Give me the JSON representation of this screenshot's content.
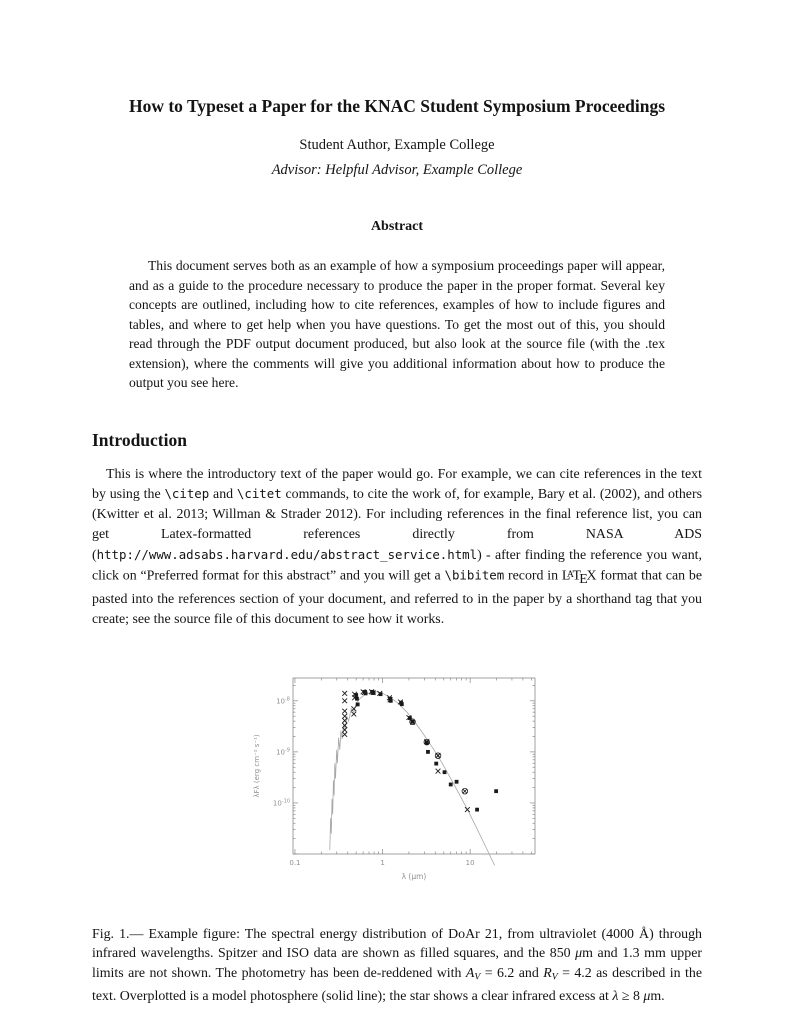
{
  "title": "How to Typeset a Paper for the KNAC Student Symposium Proceedings",
  "author": "Student Author, Example College",
  "advisor": "Advisor: Helpful Advisor, Example College",
  "abstract": {
    "heading": "Abstract",
    "text": "This document serves both as an example of how a symposium proceedings paper will appear, and as a guide to the procedure necessary to produce the paper in the proper format. Several key concepts are outlined, including how to cite references, examples of how to include figures and tables, and where to get help when you have questions. To get the most out of this, you should read through the PDF output document produced, but also look at the source file (with the .tex extension), where the comments will give you additional information about how to produce the output you see here."
  },
  "introduction": {
    "heading": "Introduction",
    "segments": [
      {
        "style": "serif",
        "text": "This is where the introductory text of the paper would go. For example, we can cite references in the text by using the "
      },
      {
        "style": "mono",
        "text": "\\citep"
      },
      {
        "style": "serif",
        "text": " and "
      },
      {
        "style": "mono",
        "text": "\\citet"
      },
      {
        "style": "serif",
        "text": " commands, to cite the work of, for example, Bary et al. (2002), and others (Kwitter et al. 2013; Willman & Strader 2012). For including references in the final reference list, you can get Latex-formatted references directly from NASA ADS ("
      },
      {
        "style": "mono",
        "text": "http://www.adsabs.harvard.edu/abstract_service.html"
      },
      {
        "style": "serif",
        "text": ") - after finding the reference you want, click on “Preferred format for this abstract” and you will get a "
      },
      {
        "style": "mono",
        "text": "\\bibitem"
      },
      {
        "style": "serif",
        "text": " record in "
      },
      {
        "style": "latex",
        "text": "LaTeX"
      },
      {
        "style": "serif",
        "text": " format that can be pasted into the references section of your document, and referred to in the paper by a shorthand tag that you create; see the source file of this document to see how it works."
      }
    ]
  },
  "figure": {
    "chart_data": {
      "type": "scatter",
      "title": "",
      "xlabel": "λ (μm)",
      "ylabel": "λFλ (erg cm⁻² s⁻¹)",
      "x_scale": "log",
      "y_scale": "log",
      "xlim": [
        0.095,
        55
      ],
      "ylim": [
        1e-11,
        2.8e-08
      ],
      "grid": false,
      "legend": "none",
      "x_ticks": [
        {
          "v": 0.1,
          "label": "0.1"
        },
        {
          "v": 1,
          "label": "1"
        },
        {
          "v": 10,
          "label": "10"
        }
      ],
      "y_ticks": [
        {
          "v": 1e-08,
          "base": "10",
          "exp": "-8"
        },
        {
          "v": 1e-09,
          "base": "10",
          "exp": "-9"
        },
        {
          "v": 1e-10,
          "base": "10",
          "exp": "-10"
        }
      ],
      "model_line_name": "model-photosphere",
      "model_line": [
        [
          0.25,
          1.2e-11
        ],
        [
          0.255,
          5e-11
        ],
        [
          0.26,
          2.5e-11
        ],
        [
          0.265,
          1.2e-10
        ],
        [
          0.27,
          6e-11
        ],
        [
          0.275,
          2.8e-10
        ],
        [
          0.28,
          1.4e-10
        ],
        [
          0.285,
          6e-10
        ],
        [
          0.29,
          3e-10
        ],
        [
          0.3,
          1.1e-09
        ],
        [
          0.305,
          6e-10
        ],
        [
          0.315,
          1.9e-09
        ],
        [
          0.325,
          1.1e-09
        ],
        [
          0.335,
          2.6e-09
        ],
        [
          0.345,
          1.8e-09
        ],
        [
          0.36,
          3.6e-09
        ],
        [
          0.375,
          2.8e-09
        ],
        [
          0.39,
          5e-09
        ],
        [
          0.41,
          4e-09
        ],
        [
          0.44,
          7e-09
        ],
        [
          0.47,
          6e-09
        ],
        [
          0.5,
          9e-09
        ],
        [
          0.55,
          1.1e-08
        ],
        [
          0.62,
          1.3e-08
        ],
        [
          0.72,
          1.45e-08
        ],
        [
          0.85,
          1.5e-08
        ],
        [
          1.0,
          1.4e-08
        ],
        [
          1.2,
          1.2e-08
        ],
        [
          1.5,
          9e-09
        ],
        [
          1.9,
          6e-09
        ],
        [
          2.4,
          3.6e-09
        ],
        [
          3.0,
          2.1e-09
        ],
        [
          3.8,
          1.15e-09
        ],
        [
          4.8,
          6e-10
        ],
        [
          6.0,
          3e-10
        ],
        [
          7.5,
          1.5e-10
        ],
        [
          9.5,
          7e-11
        ],
        [
          12,
          3.1e-11
        ],
        [
          15,
          1.4e-11
        ],
        [
          19,
          6e-12
        ]
      ],
      "series": [
        {
          "name": "ground-photometry",
          "marker": "x",
          "points": [
            [
              0.37,
              1.4e-08
            ],
            [
              0.37,
              1e-08
            ],
            [
              0.37,
              6.3e-09
            ],
            [
              0.37,
              5e-09
            ],
            [
              0.37,
              4.1e-09
            ],
            [
              0.37,
              3.3e-09
            ],
            [
              0.37,
              2.7e-09
            ],
            [
              0.37,
              2.2e-09
            ],
            [
              0.48,
              1.35e-08
            ],
            [
              0.48,
              1.15e-08
            ],
            [
              0.47,
              7e-09
            ],
            [
              0.47,
              5.5e-09
            ],
            [
              0.6,
              1.5e-08
            ],
            [
              0.62,
              1.45e-08
            ],
            [
              0.75,
              1.5e-08
            ],
            [
              0.78,
              1.45e-08
            ],
            [
              0.93,
              1.4e-08
            ],
            [
              1.2,
              1.15e-08
            ],
            [
              1.22,
              1.05e-08
            ],
            [
              1.6,
              9.5e-09
            ],
            [
              2.0,
              4.7e-09
            ],
            [
              2.2,
              3.8e-09
            ],
            [
              3.2,
              1.6e-09
            ],
            [
              4.3,
              8.5e-10
            ],
            [
              4.3,
              4.2e-10
            ],
            [
              9.3,
              7.4e-11
            ]
          ]
        },
        {
          "name": "spitzer-iso-filled-squares",
          "marker": "square",
          "points": [
            [
              0.5,
              1.3e-08
            ],
            [
              0.51,
              1.1e-08
            ],
            [
              0.52,
              8.5e-09
            ],
            [
              0.63,
              1.5e-08
            ],
            [
              0.64,
              1.4e-08
            ],
            [
              0.76,
              1.5e-08
            ],
            [
              0.79,
              1.42e-08
            ],
            [
              0.95,
              1.35e-08
            ],
            [
              1.22,
              1.1e-08
            ],
            [
              1.24,
              1e-08
            ],
            [
              1.63,
              9.2e-09
            ],
            [
              1.66,
              8.6e-09
            ],
            [
              2.05,
              4.6e-09
            ],
            [
              2.2,
              3.9e-09
            ],
            [
              3.2,
              1.5e-09
            ],
            [
              3.3,
              1e-09
            ],
            [
              4.1,
              5.9e-10
            ],
            [
              5.1,
              4e-10
            ],
            [
              6.0,
              2.3e-10
            ],
            [
              7.0,
              2.6e-10
            ],
            [
              12,
              7.4e-11
            ],
            [
              19.8,
              1.7e-10
            ]
          ]
        },
        {
          "name": "circled-points",
          "marker": "circle-x",
          "points": [
            [
              2.2,
              3.9e-09
            ],
            [
              3.2,
              1.55e-09
            ],
            [
              4.3,
              8.4e-10
            ],
            [
              8.7,
              1.7e-10
            ]
          ]
        }
      ],
      "colors": {
        "axis": "#8a8a8a",
        "tick_label": "#909090",
        "model_line": "#a8a8a8",
        "marker": "#1a1a1a"
      }
    },
    "caption_segments": [
      {
        "style": "serif",
        "text": "Fig. 1.— Example figure: The spectral energy distribution of DoAr 21, from ultraviolet (4000 Å) through infrared wavelengths. Spitzer and ISO data are shown as filled squares, and the 850 "
      },
      {
        "style": "ital",
        "text": "μ"
      },
      {
        "style": "serif",
        "text": "m and 1.3 mm upper limits are not shown. The photometry has been de-reddened with "
      },
      {
        "style": "ital",
        "text": "A"
      },
      {
        "style": "subv",
        "text": "V"
      },
      {
        "style": "serif",
        "text": " = 6.2 and "
      },
      {
        "style": "ital",
        "text": "R"
      },
      {
        "style": "subv",
        "text": "V"
      },
      {
        "style": "serif",
        "text": " = 4.2 as described in the text. Overplotted is a model photosphere (solid line); the star shows a clear infrared excess at "
      },
      {
        "style": "ital",
        "text": "λ"
      },
      {
        "style": "serif",
        "text": " ≥ 8 "
      },
      {
        "style": "ital",
        "text": "μ"
      },
      {
        "style": "serif",
        "text": "m."
      }
    ]
  }
}
